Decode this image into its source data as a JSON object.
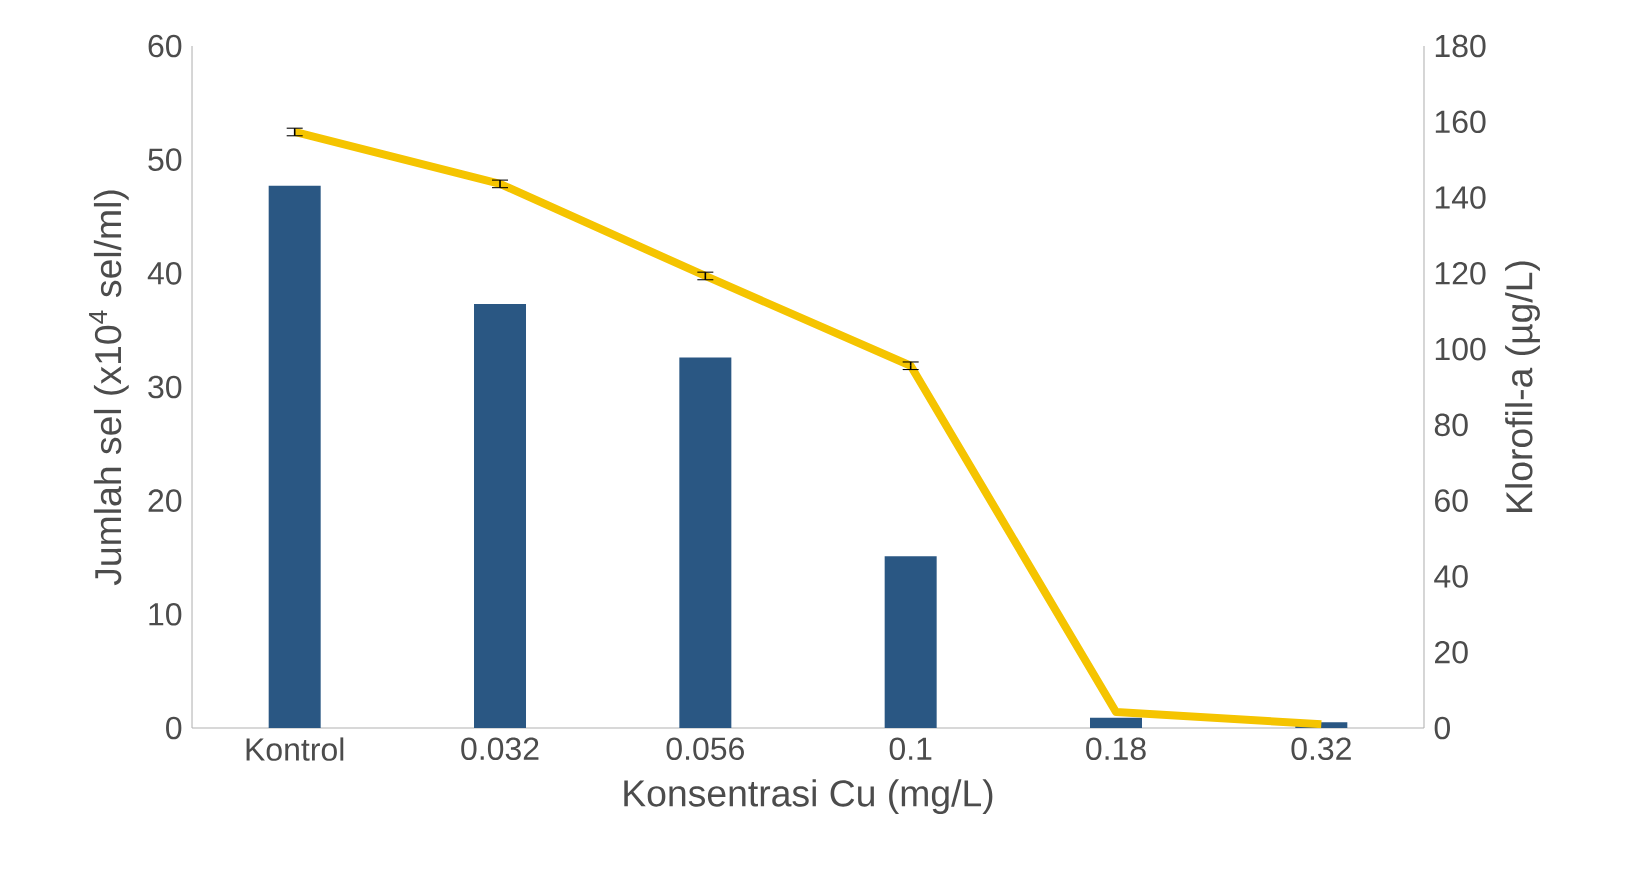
{
  "chart_data": {
    "type": "bar",
    "xlabel": "Konsentrasi Cu (mg/L)",
    "ylabel": "Jumlah sel (x10$^{4}$ sel/ml)",
    "y2label": "Klorofil-a  (µg/L)",
    "categories": [
      "Kontrol",
      "0.032",
      "0.056",
      "0.1",
      "0.18",
      "0.32"
    ],
    "series": [
      {
        "color": "#2a5783",
        "values": [
          47.7,
          37.3,
          32.6,
          15.1,
          0.9,
          0.5
        ]
      },
      {
        "type": "line",
        "axis": "y2",
        "color": "#f5c400",
        "values": [
          157.3,
          143.6,
          119.3,
          95.6,
          4.2,
          1
        ],
        "errors": [
          1,
          1,
          1,
          1,
          null,
          null
        ]
      }
    ],
    "ylim": [
      0,
      60
    ],
    "yticks": [
      0,
      10,
      20,
      30,
      40,
      50,
      60
    ],
    "y2lim": [
      0,
      180
    ],
    "y2ticks": [
      0,
      20,
      40,
      60,
      80,
      100,
      120,
      140,
      160,
      180
    ],
    "grid": false
  }
}
